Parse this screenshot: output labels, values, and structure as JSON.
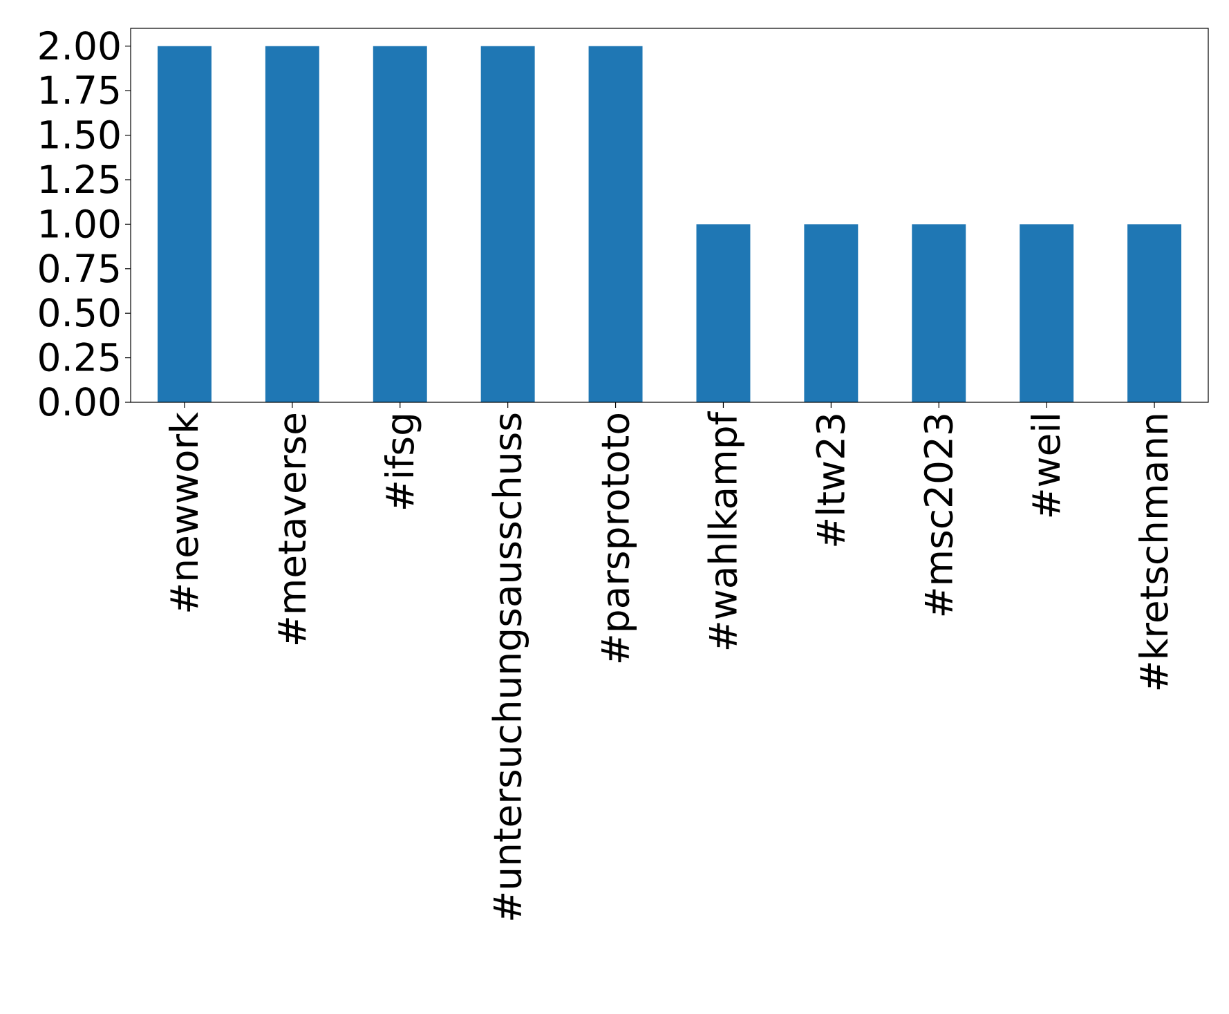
{
  "chart_data": {
    "type": "bar",
    "categories": [
      "#newwork",
      "#metaverse",
      "#ifsg",
      "#untersuchungsausschuss",
      "#parsprototo",
      "#wahlkampf",
      "#ltw23",
      "#msc2023",
      "#weil",
      "#kretschmann"
    ],
    "values": [
      2,
      2,
      2,
      2,
      2,
      1,
      1,
      1,
      1,
      1
    ],
    "color": "#1f77b4",
    "ylim": [
      0,
      2.1
    ],
    "yticks": [
      {
        "value": 0,
        "label": "0.00"
      },
      {
        "value": 0.25,
        "label": "0.25"
      },
      {
        "value": 0.5,
        "label": "0.50"
      },
      {
        "value": 0.75,
        "label": "0.75"
      },
      {
        "value": 1,
        "label": "1.00"
      },
      {
        "value": 1.25,
        "label": "1.25"
      },
      {
        "value": 1.5,
        "label": "1.50"
      },
      {
        "value": 1.75,
        "label": "1.75"
      },
      {
        "value": 2,
        "label": "2.00"
      }
    ],
    "grid": false
  }
}
